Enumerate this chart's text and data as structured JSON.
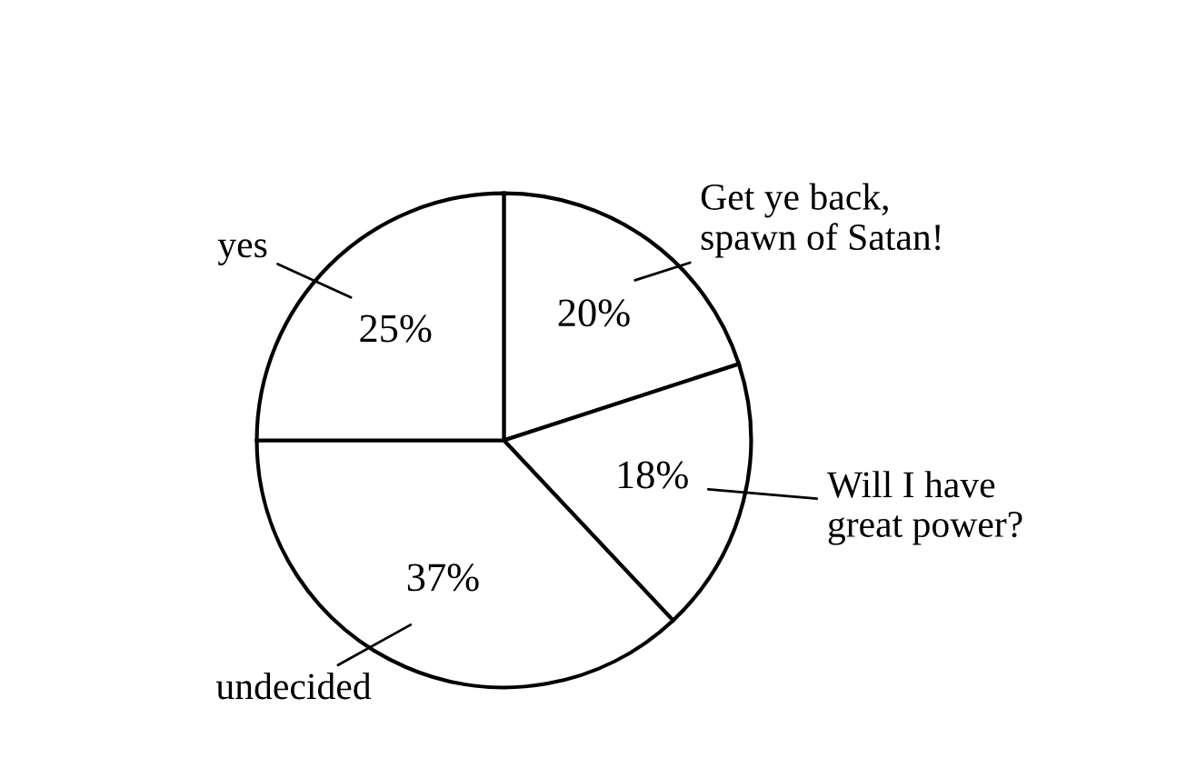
{
  "chart_data": {
    "type": "pie",
    "categories": [
      "Get ye back,\nspawn of Satan!",
      "Will I have\ngreat power?",
      "undecided",
      "yes"
    ],
    "values": [
      20,
      18,
      37,
      25
    ],
    "value_labels": [
      "20%",
      "18%",
      "37%",
      "25%"
    ],
    "colors": [
      "#ffffff",
      "#ffffff",
      "#ffffff",
      "#ffffff"
    ],
    "legend": false
  }
}
